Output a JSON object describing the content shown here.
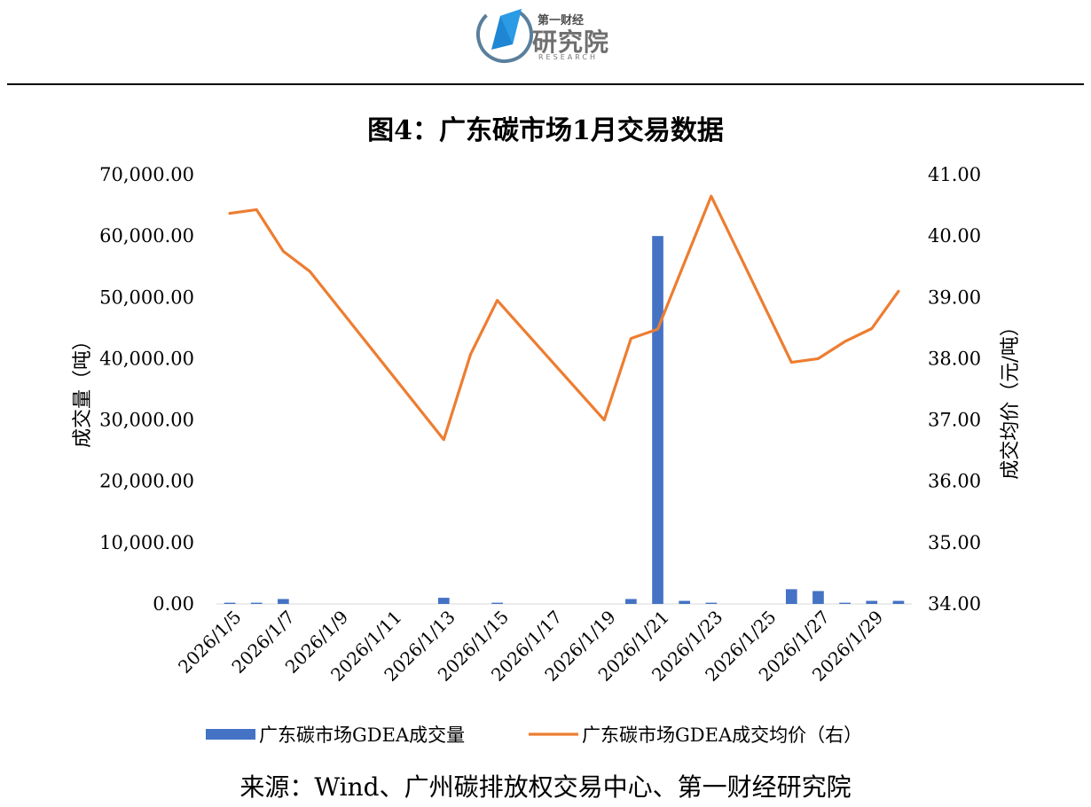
{
  "header": {
    "logo_top": "第一财经",
    "logo_main": "研究院",
    "logo_sub": "RESEARCH"
  },
  "title": "图4：广东碳市场1月交易数据",
  "source": "来源：Wind、广州碳排放权交易中心、第一财经研究院",
  "colors": {
    "bar": "#4472C4",
    "line": "#ED7D31"
  },
  "chart_data": {
    "type": "bar+line",
    "title": "图4：广东碳市场1月交易数据",
    "x": [
      "2026/1/5",
      "2026/1/6",
      "2026/1/7",
      "2026/1/8",
      "2026/1/9",
      "2026/1/10",
      "2026/1/11",
      "2026/1/12",
      "2026/1/13",
      "2026/1/14",
      "2026/1/15",
      "2026/1/16",
      "2026/1/17",
      "2026/1/18",
      "2026/1/19",
      "2026/1/20",
      "2026/1/21",
      "2026/1/22",
      "2026/1/23",
      "2026/1/24",
      "2026/1/25",
      "2026/1/26",
      "2026/1/27",
      "2026/1/28",
      "2026/1/29",
      "2026/1/30"
    ],
    "x_tick_labels": [
      "2026/1/5",
      "2026/1/7",
      "2026/1/9",
      "2026/1/11",
      "2026/1/13",
      "2026/1/15",
      "2026/1/17",
      "2026/1/19",
      "2026/1/21",
      "2026/1/23",
      "2026/1/25",
      "2026/1/27",
      "2026/1/29"
    ],
    "y_left_label": "成交量（吨）",
    "y_right_label": "成交均价（元/吨）",
    "y_left_lim": [
      0,
      70000
    ],
    "y_right_lim": [
      34,
      41
    ],
    "y_left_ticks": [
      "0.00",
      "10,000.00",
      "20,000.00",
      "30,000.00",
      "40,000.00",
      "50,000.00",
      "60,000.00",
      "70,000.00"
    ],
    "y_right_ticks": [
      "34.00",
      "35.00",
      "36.00",
      "37.00",
      "38.00",
      "39.00",
      "40.00",
      "41.00"
    ],
    "legend_position": "bottom",
    "series": [
      {
        "name": "广东碳市场GDEA成交量",
        "type": "bar",
        "axis": "left",
        "values": [
          200,
          200,
          800,
          null,
          null,
          null,
          null,
          null,
          1000,
          null,
          200,
          null,
          null,
          null,
          null,
          800,
          60000,
          500,
          200,
          null,
          null,
          2400,
          2100,
          200,
          500,
          500
        ]
      },
      {
        "name": "广东碳市场GDEA成交均价（右）",
        "type": "line",
        "axis": "right",
        "values": [
          40.37,
          40.43,
          39.75,
          39.42,
          null,
          null,
          null,
          null,
          36.68,
          38.07,
          38.95,
          null,
          null,
          null,
          37.0,
          38.33,
          38.48,
          null,
          40.65,
          null,
          null,
          37.94,
          38.0,
          38.28,
          38.49,
          39.1
        ]
      }
    ]
  }
}
